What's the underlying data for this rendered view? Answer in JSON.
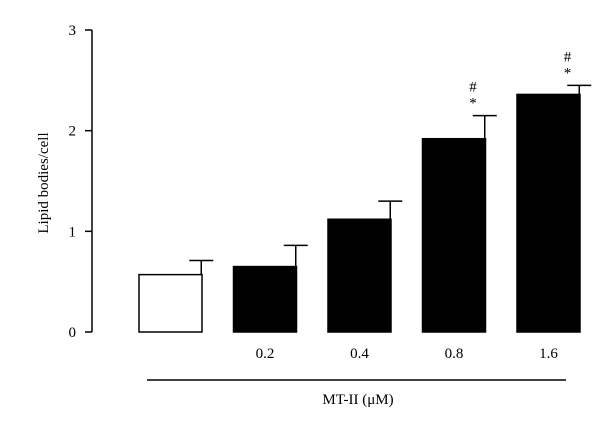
{
  "chart_data": {
    "type": "bar",
    "categories": [
      "",
      "0.2",
      "0.4",
      "0.8",
      "1.6"
    ],
    "values": [
      0.57,
      0.65,
      1.12,
      1.92,
      2.36
    ],
    "errors": [
      0.14,
      0.21,
      0.18,
      0.23,
      0.09
    ],
    "fill_colors": [
      "#ffffff",
      "#000000",
      "#000000",
      "#000000",
      "#000000"
    ],
    "significance": [
      [],
      [],
      [],
      [
        "#",
        "*"
      ],
      [
        "#",
        "*"
      ]
    ],
    "ylabel": "Lipid bodies/cell",
    "xlabel": "MT-II (μM)",
    "ylim": [
      0,
      3
    ],
    "yticks": [
      0,
      1,
      2,
      3
    ],
    "grid": false
  }
}
